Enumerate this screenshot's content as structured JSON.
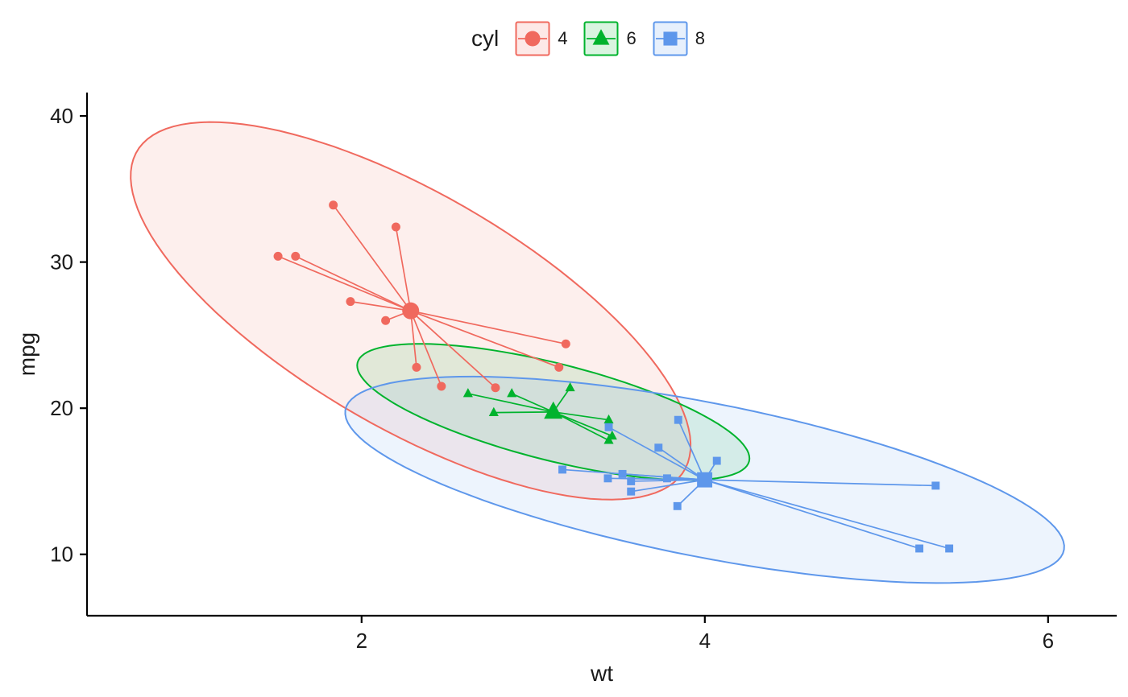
{
  "colors": {
    "background": "#FFFFFF",
    "axis": "#000000",
    "text": "#1A1A1A"
  },
  "chart_data": {
    "type": "scatter",
    "xlabel": "wt",
    "ylabel": "mpg",
    "legend_title": "cyl",
    "legend_position": "top",
    "grid": false,
    "xlim": [
      0.4,
      6.4
    ],
    "ylim": [
      5.8,
      41.6
    ],
    "xticks": [
      2,
      4,
      6
    ],
    "yticks": [
      10,
      20,
      30,
      40
    ],
    "ellipse_level": 0.95,
    "series": [
      {
        "name": "4",
        "shape": "circle",
        "color": "#F0695E",
        "centroid": [
          2.286,
          26.664
        ],
        "points": [
          [
            2.32,
            22.8
          ],
          [
            3.19,
            24.4
          ],
          [
            3.15,
            22.8
          ],
          [
            2.2,
            32.4
          ],
          [
            1.615,
            30.4
          ],
          [
            1.835,
            33.9
          ],
          [
            2.465,
            21.5
          ],
          [
            1.935,
            27.3
          ],
          [
            2.14,
            26.0
          ],
          [
            1.513,
            30.4
          ],
          [
            2.78,
            21.4
          ]
        ]
      },
      {
        "name": "6",
        "shape": "triangle",
        "color": "#00B32D",
        "centroid": [
          3.117,
          19.743
        ],
        "points": [
          [
            2.62,
            21.0
          ],
          [
            2.875,
            21.0
          ],
          [
            3.215,
            21.4
          ],
          [
            3.46,
            18.1
          ],
          [
            3.44,
            19.2
          ],
          [
            3.44,
            17.8
          ],
          [
            2.77,
            19.7
          ]
        ]
      },
      {
        "name": "8",
        "shape": "square",
        "color": "#5E97EB",
        "centroid": [
          3.999,
          15.1
        ],
        "points": [
          [
            3.44,
            18.7
          ],
          [
            3.57,
            14.3
          ],
          [
            4.07,
            16.4
          ],
          [
            3.73,
            17.3
          ],
          [
            3.78,
            15.2
          ],
          [
            5.25,
            10.4
          ],
          [
            5.424,
            10.4
          ],
          [
            5.345,
            14.7
          ],
          [
            3.52,
            15.5
          ],
          [
            3.435,
            15.2
          ],
          [
            3.84,
            13.3
          ],
          [
            3.845,
            19.2
          ],
          [
            3.17,
            15.8
          ],
          [
            3.57,
            15.0
          ]
        ]
      }
    ]
  }
}
